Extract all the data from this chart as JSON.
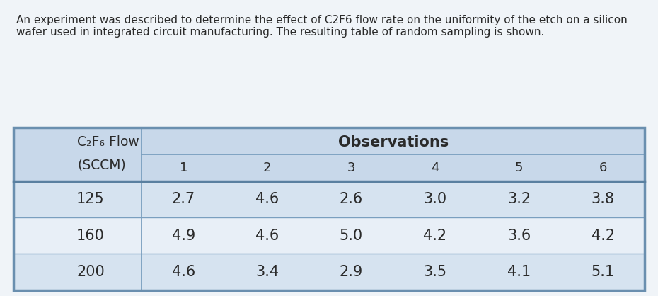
{
  "description_text": "An experiment was described to determine the effect of C2F6 flow rate on the uniformity of the etch on a silicon\nwafer used in integrated circuit manufacturing. The resulting table of random sampling is shown.",
  "table_bg_light": "#dce6f0",
  "table_bg_dark": "#c8d8ea",
  "table_border_color": "#6a8faf",
  "header_bg": "#c8d8ea",
  "header_label_line1": "C₂F₆ Flow",
  "header_label_line2": "(SCCM)",
  "observations_label": "Observations",
  "obs_columns": [
    "1",
    "2",
    "3",
    "4",
    "5",
    "6"
  ],
  "flow_rates": [
    "125",
    "160",
    "200"
  ],
  "data": [
    [
      2.7,
      4.6,
      2.6,
      3.0,
      3.2,
      3.8
    ],
    [
      4.9,
      4.6,
      5.0,
      4.2,
      3.6,
      4.2
    ],
    [
      4.6,
      3.4,
      2.9,
      3.5,
      4.1,
      5.1
    ]
  ],
  "data_str": [
    "2.7",
    "4.6",
    "2.6",
    "3.0",
    "3.2",
    "3.8",
    "4.9",
    "4.6",
    "5.0",
    "4.2",
    "3.6",
    "4.2",
    "4.6",
    "3.4",
    "2.9",
    "3.5",
    "4.1",
    "5.1"
  ],
  "page_bg": "#f0f4f8",
  "text_dark": "#2a2a2a",
  "desc_fontsize": 11.0,
  "header_fontsize": 13.5,
  "obs_header_fontsize": 15,
  "col_header_fontsize": 13,
  "data_fontsize": 15,
  "row_alt_colors": [
    "#d6e3f0",
    "#e8eff7"
  ],
  "line_color": "#7a9fbf",
  "line_color_thick": "#5a80a0"
}
